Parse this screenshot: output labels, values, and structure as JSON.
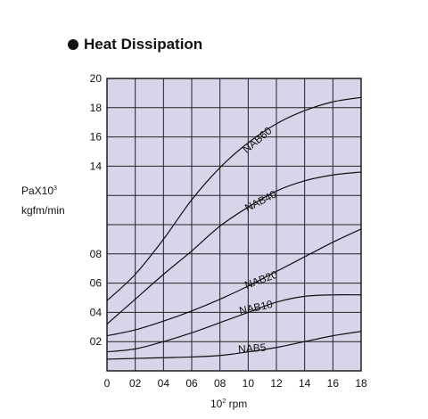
{
  "title": "Heat Dissipation",
  "bullet_icon": "filled-circle-icon",
  "ylabel_line1": "PaX10",
  "ylabel_sup": "3",
  "ylabel_line2": "kgfm/min",
  "xlabel_base": "10",
  "xlabel_sup": "2",
  "xlabel_unit": " rpm",
  "chart_data": {
    "type": "line",
    "title": "Heat Dissipation",
    "xlabel": "10^2 rpm",
    "ylabel": "PaX10^3 kgfm/min",
    "xlim": [
      0,
      18
    ],
    "x_ticks": [
      "0",
      "02",
      "04",
      "06",
      "08",
      "10",
      "12",
      "14",
      "16",
      "18"
    ],
    "y_ticks_lower": [
      "02",
      "04",
      "06",
      "08"
    ],
    "y_ticks_upper": [
      "14",
      "16",
      "18",
      "20"
    ],
    "y_axis_note": "broken axis: lower section spans 0-10, upper section spans 10-20",
    "grid": true,
    "background": "#d8d4ea",
    "line_color": "#111111",
    "series": [
      {
        "name": "NAB60",
        "x": [
          0,
          2,
          4,
          6,
          8,
          10,
          12,
          14,
          16,
          18
        ],
        "y": [
          4.8,
          6.6,
          9.0,
          11.7,
          13.9,
          15.6,
          16.9,
          17.8,
          18.4,
          18.7
        ]
      },
      {
        "name": "NAB40",
        "x": [
          0,
          2,
          4,
          6,
          8,
          10,
          12,
          14,
          16,
          18
        ],
        "y": [
          3.2,
          4.9,
          6.6,
          8.2,
          9.9,
          11.2,
          12.3,
          13.0,
          13.4,
          13.6
        ]
      },
      {
        "name": "NAB20",
        "x": [
          0,
          2,
          4,
          6,
          8,
          10,
          12,
          14,
          16,
          18
        ],
        "y": [
          2.4,
          2.8,
          3.4,
          4.1,
          4.9,
          5.8,
          6.8,
          7.8,
          8.8,
          9.7
        ]
      },
      {
        "name": "NAB10",
        "x": [
          0,
          2,
          4,
          6,
          8,
          10,
          12,
          14,
          16,
          18
        ],
        "y": [
          1.3,
          1.5,
          2.0,
          2.6,
          3.3,
          4.0,
          4.7,
          5.1,
          5.2,
          5.2
        ]
      },
      {
        "name": "NAB5",
        "x": [
          0,
          2,
          4,
          6,
          8,
          10,
          12,
          14,
          16,
          18
        ],
        "y": [
          0.8,
          0.85,
          0.9,
          0.95,
          1.05,
          1.3,
          1.6,
          2.0,
          2.4,
          2.7
        ]
      }
    ],
    "line_labels": [
      {
        "text": "NAB60",
        "x": 10.8,
        "y": 15.6,
        "angle": -40
      },
      {
        "text": "NAB40",
        "x": 11.0,
        "y": 11.4,
        "angle": -27
      },
      {
        "text": "NAB20",
        "x": 11.0,
        "y": 6.0,
        "angle": -20
      },
      {
        "text": "NAB10",
        "x": 10.6,
        "y": 4.1,
        "angle": -12
      },
      {
        "text": "NAB5",
        "x": 10.3,
        "y": 1.3,
        "angle": -4
      }
    ]
  }
}
